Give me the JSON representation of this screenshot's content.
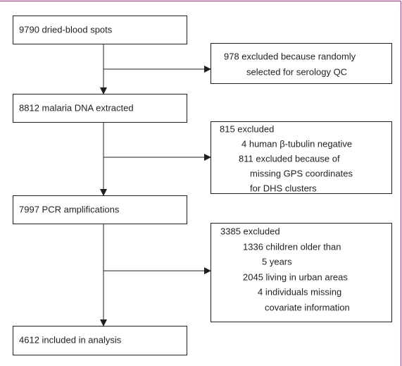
{
  "nodes": [
    {
      "label": "9790 dried-blood spots"
    },
    {
      "label": "8812 malaria DNA extracted"
    },
    {
      "label": "7997 PCR amplifications"
    },
    {
      "label": "4612 included in analysis"
    }
  ],
  "exclusions": [
    {
      "lines": [
        "978 excluded because randomly",
        "selected for serology QC"
      ]
    },
    {
      "lines": [
        "815 excluded",
        "4 human β-tubulin negative",
        "811 excluded because of",
        "missing GPS coordinates",
        "for DHS clusters"
      ]
    },
    {
      "lines": [
        "3385 excluded",
        "1336 children older than",
        "5 years",
        "2045 living in urban areas",
        "4 individuals missing",
        "covariate information"
      ]
    }
  ]
}
